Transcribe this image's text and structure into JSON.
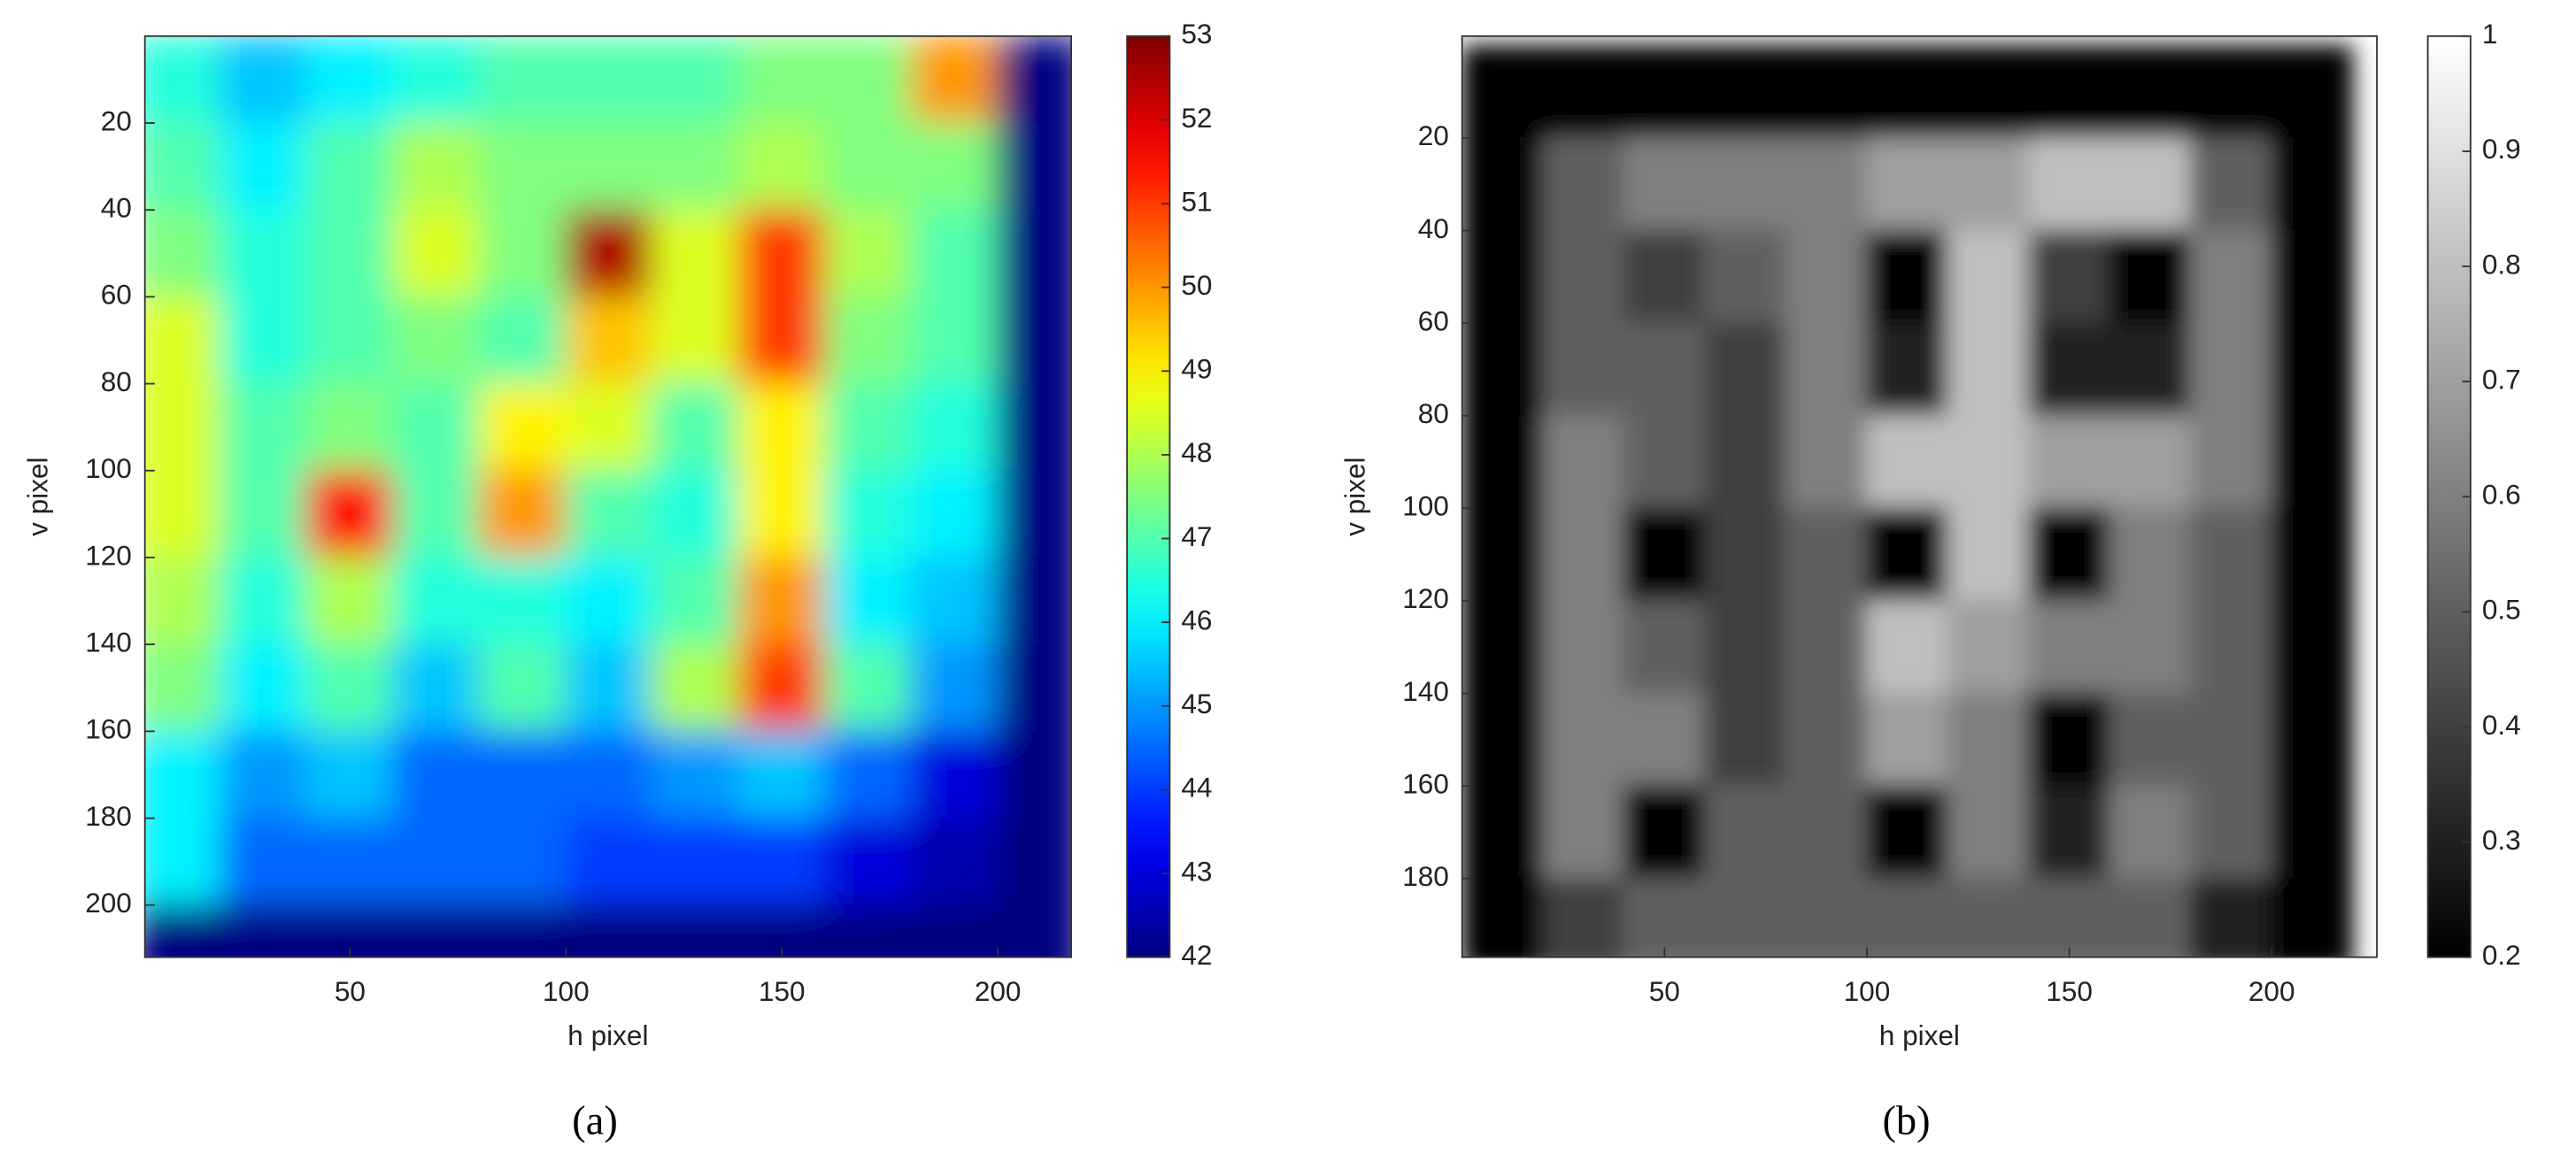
{
  "chart_data": [
    {
      "type": "heatmap",
      "colormap": "jet",
      "xlabel": "h pixel",
      "ylabel": "v pixel",
      "caption": "(a)",
      "xlim": [
        2.5,
        217
      ],
      "ylim": [
        0,
        212
      ],
      "xticks": [
        50,
        100,
        150,
        200
      ],
      "yticks": [
        20,
        40,
        60,
        80,
        100,
        120,
        140,
        160,
        180,
        200
      ],
      "clim": [
        42,
        53
      ],
      "cticks": [
        42,
        43,
        44,
        45,
        46,
        47,
        48,
        49,
        50,
        51,
        52,
        53
      ],
      "x": [
        10,
        30,
        50,
        70,
        90,
        110,
        130,
        150,
        170,
        190,
        210
      ],
      "y": [
        10,
        30,
        50,
        70,
        90,
        110,
        130,
        150,
        170,
        190,
        210
      ],
      "z": [
        [
          46.5,
          45.5,
          46,
          46.5,
          47,
          47,
          47,
          47.5,
          47.5,
          50,
          42
        ],
        [
          47,
          46,
          47,
          48,
          47.5,
          47.5,
          47.5,
          48,
          47.5,
          47.5,
          42
        ],
        [
          47.5,
          46.5,
          47,
          48.5,
          47.5,
          52.5,
          48.5,
          51,
          48,
          47,
          42
        ],
        [
          48.5,
          46.5,
          47,
          47.5,
          47,
          49.5,
          48.5,
          51,
          47.5,
          47,
          42
        ],
        [
          48.5,
          47,
          47.5,
          47,
          49,
          48.5,
          47,
          49,
          47,
          46.5,
          42
        ],
        [
          48.5,
          47,
          51.5,
          47,
          50,
          47,
          46.5,
          49,
          46.5,
          46,
          42
        ],
        [
          48,
          46.5,
          48,
          46.5,
          46.5,
          46,
          47,
          50,
          46,
          45.5,
          42
        ],
        [
          47.5,
          46,
          47,
          45.5,
          47,
          45.5,
          48,
          51,
          47,
          45,
          42
        ],
        [
          46,
          45,
          45.5,
          44.5,
          44.5,
          44.5,
          45,
          45.5,
          44.5,
          43,
          42
        ],
        [
          46,
          44.5,
          44.5,
          44.5,
          44.5,
          44,
          44,
          44,
          43,
          42.5,
          42
        ],
        [
          42,
          42,
          42,
          42,
          42,
          42,
          42,
          42,
          42,
          42,
          42
        ]
      ]
    },
    {
      "type": "heatmap",
      "colormap": "gray",
      "xlabel": "h pixel",
      "ylabel": "v pixel",
      "caption": "(b)",
      "xlim": [
        0,
        226
      ],
      "ylim": [
        -2,
        197
      ],
      "xticks": [
        50,
        100,
        150,
        200
      ],
      "yticks": [
        20,
        40,
        60,
        80,
        100,
        120,
        140,
        160,
        180
      ],
      "clim": [
        0.2,
        1
      ],
      "cticks": [
        0.2,
        0.3,
        0.4,
        0.5,
        0.6,
        0.7,
        0.8,
        0.9,
        1
      ],
      "x": [
        10,
        30,
        50,
        70,
        90,
        110,
        130,
        150,
        170,
        190,
        210
      ],
      "y": [
        10,
        30,
        50,
        70,
        90,
        110,
        130,
        150,
        170,
        190
      ],
      "z": [
        [
          0.2,
          0.2,
          0.2,
          0.2,
          0.2,
          0.2,
          0.2,
          0.2,
          0.2,
          0.2,
          0.2
        ],
        [
          0.2,
          0.5,
          0.6,
          0.6,
          0.6,
          0.7,
          0.7,
          0.8,
          0.8,
          0.5,
          0.2
        ],
        [
          0.2,
          0.5,
          0.4,
          0.5,
          0.6,
          0.2,
          0.8,
          0.4,
          0.2,
          0.6,
          0.2
        ],
        [
          0.2,
          0.5,
          0.5,
          0.4,
          0.6,
          0.3,
          0.8,
          0.3,
          0.3,
          0.6,
          0.2
        ],
        [
          0.2,
          0.6,
          0.5,
          0.4,
          0.6,
          0.8,
          0.8,
          0.7,
          0.7,
          0.6,
          0.2
        ],
        [
          0.2,
          0.6,
          0.2,
          0.4,
          0.5,
          0.2,
          0.8,
          0.2,
          0.6,
          0.5,
          0.2
        ],
        [
          0.2,
          0.6,
          0.5,
          0.4,
          0.5,
          0.8,
          0.7,
          0.6,
          0.6,
          0.5,
          0.2
        ],
        [
          0.2,
          0.6,
          0.6,
          0.4,
          0.5,
          0.7,
          0.6,
          0.2,
          0.5,
          0.5,
          0.2
        ],
        [
          0.2,
          0.6,
          0.2,
          0.5,
          0.5,
          0.2,
          0.6,
          0.3,
          0.6,
          0.5,
          0.2
        ],
        [
          0.2,
          0.4,
          0.5,
          0.5,
          0.5,
          0.5,
          0.5,
          0.5,
          0.5,
          0.3,
          0.2
        ]
      ]
    }
  ]
}
